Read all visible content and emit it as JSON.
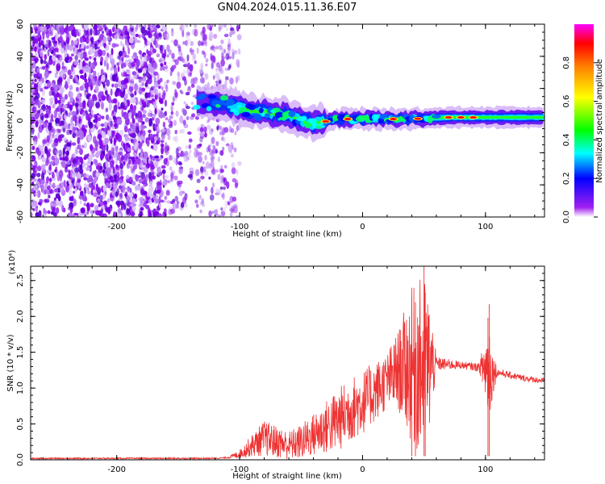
{
  "title": "GN04.2024.015.11.36.E07",
  "chart_data": [
    {
      "type": "heatmap",
      "title": "GN04.2024.015.11.36.E07",
      "xlabel": "Height of straight line (km)",
      "ylabel": "Frequency (Hz)",
      "xlim": [
        -270,
        148
      ],
      "ylim": [
        -60,
        60
      ],
      "x_ticks": [
        -200,
        -100,
        0,
        100
      ],
      "x_tick_labels": [
        "-200",
        "-100",
        "0",
        "100"
      ],
      "y_ticks": [
        -60,
        -40,
        -20,
        0,
        20,
        40,
        60
      ],
      "y_tick_labels": [
        "-60",
        "-40",
        "-20",
        "0",
        "20",
        "40",
        "60"
      ],
      "colorbar": {
        "label": "Normalized spectral amplitude",
        "range": [
          0,
          1
        ],
        "ticks": [
          0.0,
          0.2,
          0.4,
          0.6,
          0.8
        ],
        "tick_labels": [
          "0.0",
          "0.2",
          "0.4",
          "0.6",
          "0.8"
        ],
        "colormap": [
          "#ffffff",
          "#a020f0",
          "#0000ff",
          "#00ffff",
          "#00ff00",
          "#ffff00",
          "#ff8000",
          "#ff0000",
          "#ff00ff"
        ]
      },
      "features": {
        "noise_region_x": [
          -270,
          -110
        ],
        "signal_start_x": -135,
        "signal_center_freq": [
          [
            -135,
            12
          ],
          [
            -110,
            10
          ],
          [
            -90,
            6
          ],
          [
            -60,
            3
          ],
          [
            -40,
            -2
          ],
          [
            -20,
            1
          ],
          [
            0,
            1
          ],
          [
            40,
            1
          ],
          [
            70,
            2
          ],
          [
            90,
            2
          ],
          [
            110,
            2
          ],
          [
            148,
            2
          ]
        ],
        "hot_spots_x": [
          -30,
          -12,
          25,
          45,
          70,
          80,
          90
        ]
      },
      "grid": false
    },
    {
      "type": "line",
      "xlabel": "Height of straight line (km)",
      "ylabel": "SNR (10 * v/v)",
      "y_multiplier_label": "(x10⁴)",
      "xlim": [
        -270,
        148
      ],
      "ylim": [
        0,
        2.7
      ],
      "x_ticks": [
        -200,
        -100,
        0,
        100
      ],
      "x_tick_labels": [
        "-200",
        "-100",
        "0",
        "100"
      ],
      "y_ticks": [
        0.0,
        0.5,
        1.0,
        1.5,
        2.0,
        2.5
      ],
      "y_tick_labels": [
        "0.0",
        "0.5",
        "1.0",
        "1.5",
        "2.0",
        "2.5"
      ],
      "series": [
        {
          "color": "#ee3333",
          "envelope_x": [
            -270,
            -150,
            -120,
            -110,
            -100,
            -90,
            -80,
            -70,
            -60,
            -50,
            -40,
            -30,
            -20,
            -10,
            0,
            10,
            20,
            30,
            35,
            40,
            45,
            50,
            55,
            60,
            70,
            80,
            90,
            100,
            103,
            106,
            110,
            120,
            130,
            148
          ],
          "envelope_y": [
            0.02,
            0.02,
            0.02,
            0.03,
            0.08,
            0.2,
            0.3,
            0.25,
            0.2,
            0.25,
            0.35,
            0.45,
            0.55,
            0.7,
            0.8,
            0.95,
            1.1,
            1.25,
            1.3,
            1.3,
            1.3,
            1.3,
            1.32,
            1.34,
            1.33,
            1.32,
            1.3,
            1.28,
            1.25,
            1.22,
            1.22,
            1.18,
            1.14,
            1.1
          ],
          "amplitude_x": [
            -270,
            -110,
            -100,
            -80,
            -60,
            -40,
            -20,
            0,
            20,
            30,
            40,
            45,
            50,
            55,
            60,
            80,
            95,
            100,
            103,
            106,
            110,
            148
          ],
          "amplitude_y": [
            0.01,
            0.01,
            0.06,
            0.25,
            0.2,
            0.3,
            0.45,
            0.45,
            0.4,
            0.6,
            1.1,
            1.2,
            1.3,
            0.9,
            0.1,
            0.05,
            0.06,
            0.5,
            0.8,
            0.3,
            0.05,
            0.04
          ],
          "peaks": [
            [
              40,
              2.3
            ],
            [
              43,
              2.2
            ],
            [
              50,
              2.75
            ],
            [
              51,
              2.33
            ],
            [
              103,
              2.17
            ],
            [
              102,
              1.98
            ]
          ]
        }
      ],
      "grid": false
    }
  ]
}
